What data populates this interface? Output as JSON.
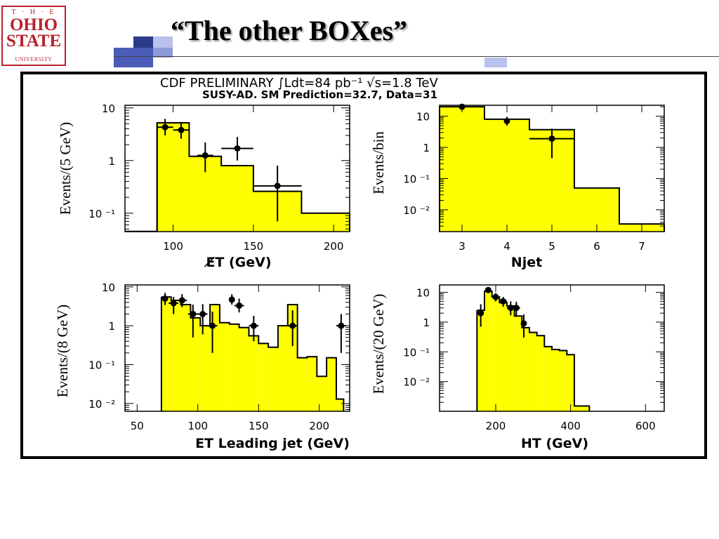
{
  "slide": {
    "title": "“The other  BOXes”",
    "logo": {
      "line1": "T · H · E",
      "line2": "OHIO",
      "line3": "STATE",
      "line4": "UNIVERSITY"
    }
  },
  "figure": {
    "header_line1": "CDF PRELIMINARY  ∫Ldt=84 pb⁻¹ √s=1.8 TeV",
    "header_line2": "SUSY-AD. SM Prediction=32.7, Data=31"
  },
  "colors": {
    "fill": "#ffff00",
    "line": "#000000",
    "accent": "#4a5bb8",
    "logo": "#b8202b"
  },
  "chart_data": [
    {
      "type": "histogram",
      "xlabel": "E̸T (GeV)",
      "ylabel": "Events/(5 GeV)",
      "xlim": [
        70,
        210
      ],
      "ylog": true,
      "ylim_exp": [
        -1.35,
        1.05
      ],
      "xticks": [
        100,
        150,
        200
      ],
      "yticks": [
        {
          "v": 10,
          "label": "10"
        },
        {
          "v": 1,
          "label": "1"
        },
        {
          "v": 0.1,
          "label": "10 ⁻¹"
        }
      ],
      "bins": [
        {
          "x0": 70,
          "x1": 90,
          "y": 0.045,
          "fill": false
        },
        {
          "x0": 90,
          "x1": 110,
          "y": 5.2
        },
        {
          "x0": 110,
          "x1": 130,
          "y": 1.2
        },
        {
          "x0": 130,
          "x1": 150,
          "y": 0.8
        },
        {
          "x0": 150,
          "x1": 180,
          "y": 0.26
        },
        {
          "x0": 180,
          "x1": 210,
          "y": 0.1
        }
      ],
      "data": [
        {
          "x": 95,
          "y": 4.3,
          "xerr": 5,
          "ylo": 3.0,
          "yhi": 6.2
        },
        {
          "x": 105,
          "y": 3.8,
          "xerr": 5,
          "ylo": 2.6,
          "yhi": 5.4
        },
        {
          "x": 120,
          "y": 1.25,
          "xerr": 5,
          "ylo": 0.6,
          "yhi": 2.2
        },
        {
          "x": 140,
          "y": 1.7,
          "xerr": 10,
          "ylo": 1.0,
          "yhi": 2.8
        },
        {
          "x": 165,
          "y": 0.33,
          "xerr": 15,
          "ylo": 0.07,
          "yhi": 0.8
        }
      ]
    },
    {
      "type": "histogram",
      "xlabel": "Njet",
      "ylabel": "Events/bin",
      "xlim": [
        2.5,
        7.5
      ],
      "ylog": true,
      "ylim_exp": [
        -2.7,
        1.35
      ],
      "xticks": [
        3,
        4,
        5,
        6,
        7
      ],
      "yticks": [
        {
          "v": 10,
          "label": "10"
        },
        {
          "v": 1,
          "label": "1"
        },
        {
          "v": 0.1,
          "label": "10 ⁻¹"
        },
        {
          "v": 0.01,
          "label": "10 ⁻²"
        }
      ],
      "bins": [
        {
          "x0": 2.5,
          "x1": 3.5,
          "y": 20
        },
        {
          "x0": 3.5,
          "x1": 4.5,
          "y": 8
        },
        {
          "x0": 4.5,
          "x1": 5.5,
          "y": 3.7
        },
        {
          "x0": 5.5,
          "x1": 6.5,
          "y": 0.05
        },
        {
          "x0": 6.5,
          "x1": 7.5,
          "y": 0.0035
        }
      ],
      "data": [
        {
          "x": 3,
          "y": 20,
          "xerr": 0,
          "ylo": 17,
          "yhi": 23
        },
        {
          "x": 4,
          "y": 7,
          "xerr": 0,
          "ylo": 5,
          "yhi": 9.5
        },
        {
          "x": 5,
          "y": 1.9,
          "xerr": 0.5,
          "ylo": 0.45,
          "yhi": 4.0
        }
      ]
    },
    {
      "type": "histogram",
      "xlabel": "ET Leading jet (GeV)",
      "ylabel": "Events/(8 GeV)",
      "xlim": [
        40,
        225
      ],
      "ylog": true,
      "ylim_exp": [
        -2.2,
        1.05
      ],
      "xticks": [
        50,
        100,
        150,
        200
      ],
      "yticks": [
        {
          "v": 10,
          "label": "10"
        },
        {
          "v": 1,
          "label": "1"
        },
        {
          "v": 0.1,
          "label": "10 ⁻¹"
        },
        {
          "v": 0.01,
          "label": "10 ⁻²"
        }
      ],
      "bins": [
        {
          "x0": 70,
          "x1": 78,
          "y": 5.5
        },
        {
          "x0": 78,
          "x1": 86,
          "y": 4.5
        },
        {
          "x0": 86,
          "x1": 94,
          "y": 3.5
        },
        {
          "x0": 94,
          "x1": 102,
          "y": 1.6
        },
        {
          "x0": 102,
          "x1": 110,
          "y": 1.0
        },
        {
          "x0": 110,
          "x1": 118,
          "y": 3.5
        },
        {
          "x0": 118,
          "x1": 126,
          "y": 1.2
        },
        {
          "x0": 126,
          "x1": 134,
          "y": 1.1
        },
        {
          "x0": 134,
          "x1": 142,
          "y": 0.9
        },
        {
          "x0": 142,
          "x1": 150,
          "y": 0.55
        },
        {
          "x0": 150,
          "x1": 158,
          "y": 0.35
        },
        {
          "x0": 158,
          "x1": 166,
          "y": 0.28
        },
        {
          "x0": 166,
          "x1": 174,
          "y": 1.0
        },
        {
          "x0": 174,
          "x1": 182,
          "y": 3.5
        },
        {
          "x0": 182,
          "x1": 190,
          "y": 0.15
        },
        {
          "x0": 190,
          "x1": 198,
          "y": 0.16
        },
        {
          "x0": 198,
          "x1": 206,
          "y": 0.05
        },
        {
          "x0": 206,
          "x1": 214,
          "y": 0.15
        },
        {
          "x0": 214,
          "x1": 220,
          "y": 0.013
        }
      ],
      "data": [
        {
          "x": 73,
          "y": 5.0,
          "xerr": 0,
          "ylo": 3.4,
          "yhi": 7.0
        },
        {
          "x": 80,
          "y": 3.8,
          "xerr": 4,
          "ylo": 2.0,
          "yhi": 5.5
        },
        {
          "x": 87,
          "y": 4.5,
          "xerr": 4,
          "ylo": 3.0,
          "yhi": 6.5
        },
        {
          "x": 96,
          "y": 2.0,
          "xerr": 4,
          "ylo": 0.5,
          "yhi": 3.5
        },
        {
          "x": 104,
          "y": 2.0,
          "xerr": 4,
          "ylo": 0.6,
          "yhi": 3.6
        },
        {
          "x": 112,
          "y": 1.0,
          "xerr": 4,
          "ylo": 0.2,
          "yhi": 2.3
        },
        {
          "x": 128,
          "y": 4.7,
          "xerr": 0,
          "ylo": 3.5,
          "yhi": 6.5
        },
        {
          "x": 134,
          "y": 3.3,
          "xerr": 4,
          "ylo": 2.2,
          "yhi": 5.0
        },
        {
          "x": 146,
          "y": 1.0,
          "xerr": 4,
          "ylo": 0.4,
          "yhi": 1.8
        },
        {
          "x": 178,
          "y": 1.0,
          "xerr": 4,
          "ylo": 0.3,
          "yhi": 2.5
        },
        {
          "x": 218,
          "y": 1.0,
          "xerr": 4,
          "ylo": 0.2,
          "yhi": 2.0
        }
      ]
    },
    {
      "type": "histogram",
      "xlabel": "HT (GeV)",
      "ylabel": "Events/(20 GeV)",
      "xlim": [
        50,
        650
      ],
      "ylog": true,
      "ylim_exp": [
        -3.0,
        1.25
      ],
      "xticks": [
        200,
        400,
        600
      ],
      "yticks": [
        {
          "v": 10,
          "label": "10"
        },
        {
          "v": 1,
          "label": "1"
        },
        {
          "v": 0.1,
          "label": "10 ⁻¹"
        },
        {
          "v": 0.01,
          "label": "10 ⁻²"
        }
      ],
      "bins": [
        {
          "x0": 150,
          "x1": 170,
          "y": 2.5
        },
        {
          "x0": 170,
          "x1": 190,
          "y": 11
        },
        {
          "x0": 190,
          "x1": 210,
          "y": 7
        },
        {
          "x0": 210,
          "x1": 230,
          "y": 4.5
        },
        {
          "x0": 230,
          "x1": 250,
          "y": 3.5
        },
        {
          "x0": 250,
          "x1": 270,
          "y": 1.6
        },
        {
          "x0": 270,
          "x1": 290,
          "y": 0.65
        },
        {
          "x0": 290,
          "x1": 310,
          "y": 0.45
        },
        {
          "x0": 310,
          "x1": 330,
          "y": 0.35
        },
        {
          "x0": 330,
          "x1": 350,
          "y": 0.15
        },
        {
          "x0": 350,
          "x1": 370,
          "y": 0.12
        },
        {
          "x0": 370,
          "x1": 390,
          "y": 0.11
        },
        {
          "x0": 390,
          "x1": 410,
          "y": 0.08
        },
        {
          "x0": 410,
          "x1": 450,
          "y": 0.0015
        }
      ],
      "data": [
        {
          "x": 160,
          "y": 2.0,
          "xerr": 0,
          "ylo": 0.7,
          "yhi": 4.0
        },
        {
          "x": 180,
          "y": 12,
          "xerr": 0,
          "ylo": 9.5,
          "yhi": 15
        },
        {
          "x": 200,
          "y": 7,
          "xerr": 10,
          "ylo": 5,
          "yhi": 9.5
        },
        {
          "x": 220,
          "y": 5,
          "xerr": 10,
          "ylo": 3.3,
          "yhi": 7
        },
        {
          "x": 240,
          "y": 3,
          "xerr": 10,
          "ylo": 1.7,
          "yhi": 5
        },
        {
          "x": 255,
          "y": 3,
          "xerr": 10,
          "ylo": 1.5,
          "yhi": 4.8
        },
        {
          "x": 275,
          "y": 0.9,
          "xerr": 0,
          "ylo": 0.3,
          "yhi": 1.8
        }
      ]
    }
  ]
}
